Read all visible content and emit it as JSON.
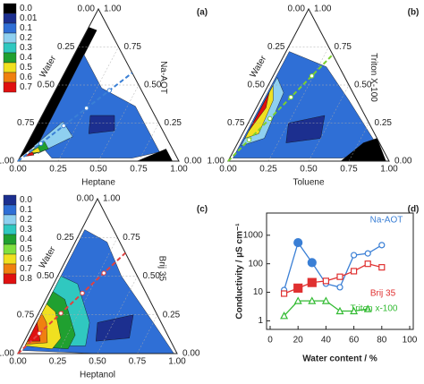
{
  "ternary_panels": [
    {
      "label": "(a)",
      "left_axis": "Water",
      "right_axis": "Na-AOT",
      "bottom_axis": "Heptane",
      "ticks": [
        "0.00",
        "0.25",
        "0.50",
        "0.75",
        "1.00"
      ],
      "colorbar": {
        "labels": [
          "0.0",
          "0.01",
          "0.1",
          "0.2",
          "0.3",
          "0.4",
          "0.5",
          "0.6",
          "0.7"
        ],
        "colors": [
          "#000000",
          "#1c2f8f",
          "#2f6fd6",
          "#8fd0f0",
          "#30c8c0",
          "#20a030",
          "#f0e020",
          "#f08010",
          "#e01010"
        ]
      }
    },
    {
      "label": "(b)",
      "left_axis": "Water",
      "right_axis": "Triton X-100",
      "bottom_axis": "Toluene",
      "ticks": [
        "0.00",
        "0.25",
        "0.50",
        "0.75",
        "1.00"
      ]
    },
    {
      "label": "(c)",
      "left_axis": "Water",
      "right_axis": "Brij 35",
      "bottom_axis": "Heptanol",
      "ticks": [
        "0.00",
        "0.25",
        "0.50",
        "0.75",
        "1.00"
      ],
      "colorbar": {
        "labels": [
          "0.0",
          "0.1",
          "0.2",
          "0.3",
          "0.4",
          "0.5",
          "0.6",
          "0.7",
          "0.8"
        ],
        "colors": [
          "#1c2f8f",
          "#2f6fd6",
          "#8fd0f0",
          "#30c8c0",
          "#20a030",
          "#80e040",
          "#f0e020",
          "#f08010",
          "#e01010"
        ]
      }
    }
  ],
  "chart_data": {
    "type": "line",
    "label": "(d)",
    "x_label": "Water content / %",
    "y_label": "Conductivity / µS cm⁻¹",
    "xlim": [
      0,
      100
    ],
    "xticks": [
      0,
      20,
      40,
      60,
      80,
      100
    ],
    "ylim": [
      0.5,
      6000
    ],
    "yticks": [
      1,
      10,
      100,
      1000
    ],
    "log_y": true,
    "series": [
      {
        "name": "Na-AOT",
        "color": "#3a7fd5",
        "marker": "circle",
        "x": [
          10,
          20,
          30,
          40,
          50,
          60,
          70,
          80
        ],
        "values": [
          12,
          550,
          110,
          20,
          15,
          200,
          230,
          450
        ],
        "filled": [
          false,
          true,
          true,
          false,
          false,
          false,
          false,
          false
        ]
      },
      {
        "name": "Brij 35",
        "color": "#e03030",
        "marker": "square",
        "x": [
          10,
          20,
          30,
          40,
          50,
          60,
          70,
          80
        ],
        "values": [
          9,
          14,
          22,
          25,
          35,
          55,
          100,
          75
        ],
        "filled": [
          false,
          true,
          true,
          false,
          false,
          false,
          false,
          false
        ]
      },
      {
        "name": "Triton x-100",
        "color": "#33bb33",
        "marker": "triangle",
        "x": [
          10,
          20,
          30,
          40,
          50,
          60,
          70
        ],
        "values": [
          1.5,
          5,
          5,
          5,
          2.2,
          2.2,
          2.6
        ],
        "filled": [
          false,
          false,
          false,
          false,
          false,
          false,
          false
        ]
      }
    ]
  }
}
